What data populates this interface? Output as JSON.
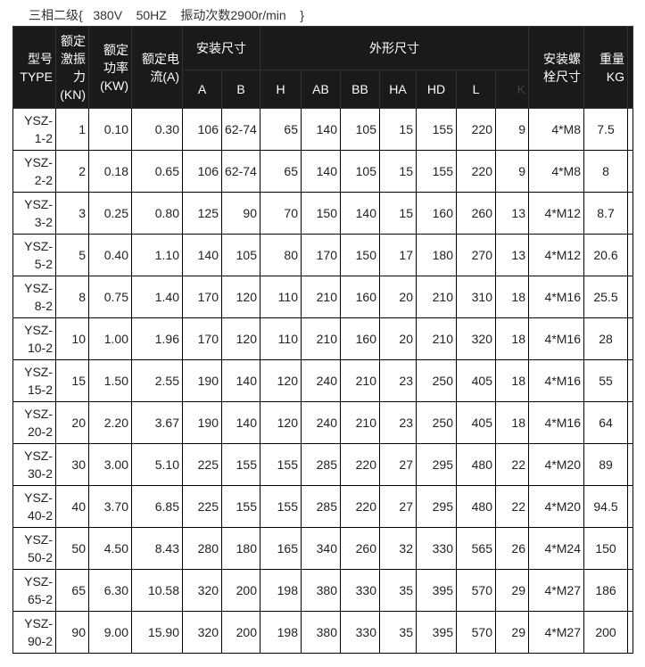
{
  "title": "三相二级{   380V    50HZ    振动次数2900r/min    }",
  "headers": {
    "type": "型号TYPE",
    "force": "额定激振力(KN)",
    "power": "额定功率(KW)",
    "current": "额定电流(A)",
    "install": "安装尺寸",
    "outline": "外形尺寸",
    "bolt": "安装螺栓尺寸",
    "weight": "重量KG",
    "sub": [
      "A",
      "B",
      "H",
      "AB",
      "BB",
      "HA",
      "HD",
      "L",
      "K"
    ]
  },
  "rows": [
    [
      "YSZ-1-2",
      "1",
      "0.10",
      "0.30",
      "106",
      "62-74",
      "65",
      "140",
      "105",
      "15",
      "155",
      "220",
      "9",
      "4*M8",
      "7.5"
    ],
    [
      "YSZ-2-2",
      "2",
      "0.18",
      "0.65",
      "106",
      "62-74",
      "65",
      "140",
      "105",
      "15",
      "155",
      "220",
      "9",
      "4*M8",
      "8"
    ],
    [
      "YSZ-3-2",
      "3",
      "0.25",
      "0.80",
      "125",
      "90",
      "70",
      "150",
      "140",
      "15",
      "160",
      "260",
      "13",
      "4*M12",
      "8.7"
    ],
    [
      "YSZ-5-2",
      "5",
      "0.40",
      "1.10",
      "140",
      "105",
      "80",
      "170",
      "150",
      "17",
      "180",
      "270",
      "13",
      "4*M12",
      "20.6"
    ],
    [
      "YSZ-8-2",
      "8",
      "0.75",
      "1.40",
      "170",
      "120",
      "110",
      "210",
      "160",
      "20",
      "210",
      "310",
      "18",
      "4*M16",
      "25.5"
    ],
    [
      "YSZ-10-2",
      "10",
      "1.00",
      "1.96",
      "170",
      "120",
      "110",
      "210",
      "160",
      "20",
      "210",
      "320",
      "18",
      "4*M16",
      "28"
    ],
    [
      "YSZ-15-2",
      "15",
      "1.50",
      "2.55",
      "190",
      "140",
      "120",
      "240",
      "210",
      "23",
      "250",
      "405",
      "18",
      "4*M16",
      "55"
    ],
    [
      "YSZ-20-2",
      "20",
      "2.20",
      "3.67",
      "190",
      "140",
      "120",
      "240",
      "210",
      "23",
      "250",
      "405",
      "18",
      "4*M16",
      "64"
    ],
    [
      "YSZ-30-2",
      "30",
      "3.00",
      "5.10",
      "225",
      "155",
      "155",
      "285",
      "220",
      "27",
      "295",
      "480",
      "22",
      "4*M20",
      "89"
    ],
    [
      "YSZ-40-2",
      "40",
      "3.70",
      "6.85",
      "225",
      "155",
      "155",
      "285",
      "220",
      "27",
      "295",
      "480",
      "22",
      "4*M20",
      "94.5"
    ],
    [
      "YSZ-50-2",
      "50",
      "4.50",
      "8.43",
      "280",
      "180",
      "165",
      "340",
      "260",
      "32",
      "330",
      "565",
      "26",
      "4*M24",
      "150"
    ],
    [
      "YSZ-65-2",
      "65",
      "6.30",
      "10.58",
      "320",
      "200",
      "198",
      "380",
      "330",
      "35",
      "395",
      "570",
      "29",
      "4*M27",
      "186"
    ],
    [
      "YSZ-90-2",
      "90",
      "9.00",
      "15.90",
      "320",
      "200",
      "198",
      "380",
      "330",
      "35",
      "395",
      "570",
      "29",
      "4*M27",
      "200"
    ]
  ]
}
